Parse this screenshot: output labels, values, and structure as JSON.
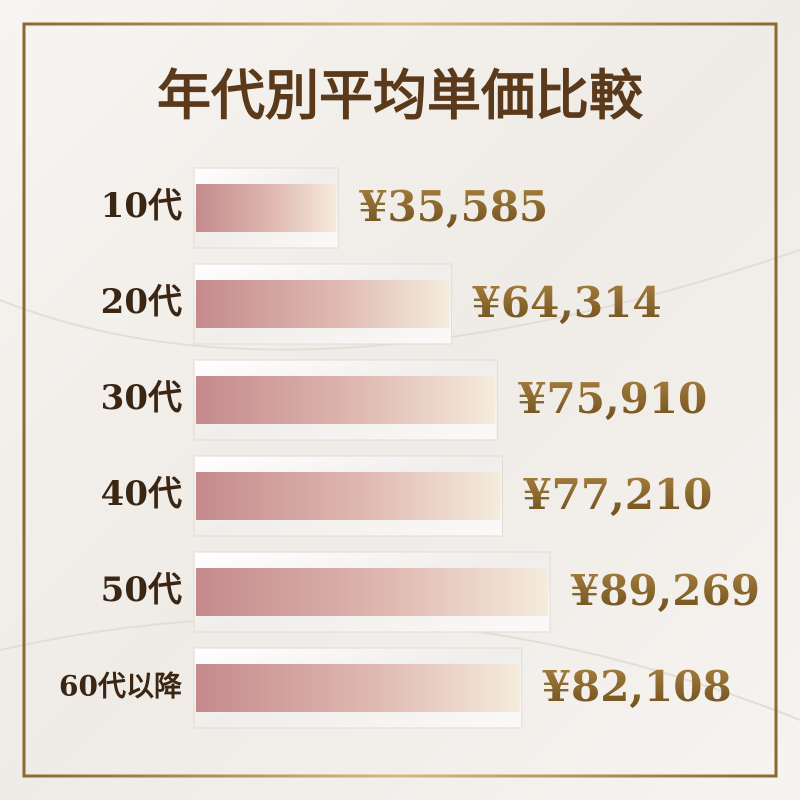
{
  "chart_data": {
    "type": "bar",
    "orientation": "horizontal",
    "title": "年代別平均単価比較",
    "categories": [
      "10代",
      "20代",
      "30代",
      "40代",
      "50代",
      "60代以降"
    ],
    "values": [
      35585,
      64314,
      75910,
      77210,
      89269,
      82108
    ],
    "value_labels": [
      "¥35,585",
      "¥64,314",
      "¥75,910",
      "¥77,210",
      "¥89,269",
      "¥82,108"
    ],
    "color": "#c58a8c"
  }
}
